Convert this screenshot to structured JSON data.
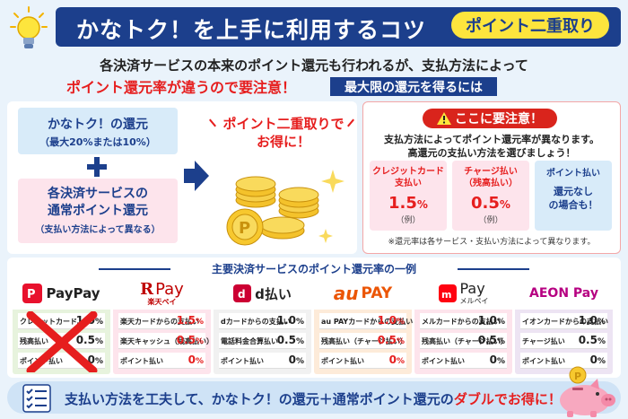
{
  "header": {
    "title": "かなトク！を上手に利用するコツ",
    "badge": "ポイント二重取り"
  },
  "intro": {
    "line1": "各決済サービスの本来のポイント還元も行われるが、支払方法によって",
    "line2": "ポイント還元率が違うので要注意！",
    "badge": "最大限の還元を得るには"
  },
  "left": {
    "kanatoku_title": "かなトク！の還元",
    "kanatoku_sub": "（最大20%または10%）",
    "normal_line1": "各決済サービスの",
    "normal_line2": "通常ポイント還元",
    "normal_sub": "（支払い方法によって異なる）",
    "otoku_line1": "ポイント二重取りで",
    "otoku_line2": "お得に！"
  },
  "caution": {
    "label": "ここに要注意！",
    "desc1": "支払方法によってポイント還元率が異なります。",
    "desc2": "高還元の支払い方法を選びましょう！",
    "cards": [
      {
        "label1": "クレジットカード",
        "label2": "支払い",
        "rate": "1.5",
        "unit": "%",
        "ex": "（例）"
      },
      {
        "label1": "チャージ払い",
        "label2": "（残高払い）",
        "rate": "0.5",
        "unit": "%",
        "ex": "（例）"
      },
      {
        "label1": "ポイント払い",
        "nashi1": "還元なし",
        "nashi2": "の場合も！"
      }
    ],
    "footnote": "※還元率は各サービス・支払い方法によって異なります。"
  },
  "table": {
    "title": "主要決済サービスのポイント還元率の一例",
    "services": [
      {
        "name": "PayPay",
        "rows": [
          {
            "label": "クレジットカード",
            "value": "1.0",
            "unit": "%"
          },
          {
            "label": "残高払い",
            "value": "0.5",
            "unit": "%"
          },
          {
            "label": "ポイント払い",
            "value": "0",
            "unit": "%"
          }
        ]
      },
      {
        "name": "楽天ペイ",
        "logo_main": "Pay",
        "logo_sub": "楽天ペイ",
        "rows": [
          {
            "label": "楽天カードからの支払い",
            "value": "1.5",
            "unit": "%"
          },
          {
            "label": "楽天キャッシュ（残高払い）",
            "value": "0.5",
            "unit": "%"
          },
          {
            "label": "ポイント払い",
            "value": "0",
            "unit": "%"
          }
        ]
      },
      {
        "name": "d払い",
        "rows": [
          {
            "label": "dカードからの支払い",
            "value": "1.0",
            "unit": "%"
          },
          {
            "label": "電話料金合算払い",
            "value": "0.5",
            "unit": "%"
          },
          {
            "label": "ポイント払い",
            "value": "0",
            "unit": "%"
          }
        ]
      },
      {
        "name": "au PAY",
        "logo_a": "au",
        "logo_b": "PAY",
        "rows": [
          {
            "label": "au PAYカードからの支払い",
            "value": "1.0",
            "unit": "%"
          },
          {
            "label": "残高払い（チャージ払い）",
            "value": "0.5",
            "unit": "%"
          },
          {
            "label": "ポイント払い",
            "value": "0",
            "unit": "%"
          }
        ]
      },
      {
        "name": "メルペイ",
        "logo_main": "Pay",
        "logo_sub": "メルペイ",
        "rows": [
          {
            "label": "メルカードからの支払い",
            "value": "1.0",
            "unit": "%"
          },
          {
            "label": "残高払い（チャージ払い）",
            "value": "0.5",
            "unit": "%"
          },
          {
            "label": "ポイント払い",
            "value": "0",
            "unit": "%"
          }
        ]
      },
      {
        "name": "AEON Pay",
        "rows": [
          {
            "label": "イオンカードからの支払い",
            "value": "1.0",
            "unit": "%"
          },
          {
            "label": "チャージ払い",
            "value": "0.5",
            "unit": "%"
          },
          {
            "label": "ポイント払い",
            "value": "0",
            "unit": "%"
          }
        ]
      }
    ]
  },
  "bottom": {
    "text": "支払い方法を工夫して、かなトク！の還元＋通常ポイント還元の",
    "highlight": "ダブルでお得に！"
  },
  "colors": {
    "navy": "#1c3f8c",
    "red": "#e61e1e",
    "yellow": "#fde53d"
  }
}
